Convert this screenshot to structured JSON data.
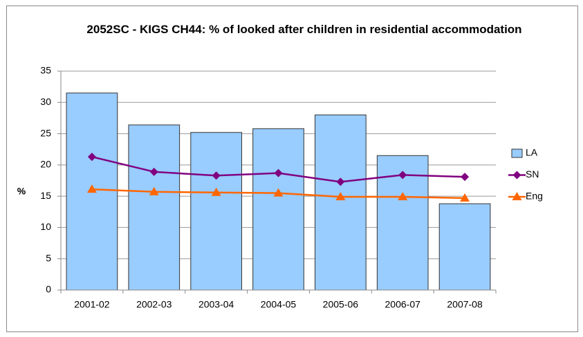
{
  "chart_data": {
    "type": "bar",
    "title": "2052SC - KIGS CH44: % of looked after children in residential accommodation",
    "y_label": "%",
    "categories": [
      "2001-02",
      "2002-03",
      "2003-04",
      "2004-05",
      "2005-06",
      "2006-07",
      "2007-08"
    ],
    "series": [
      {
        "name": "LA",
        "type": "bar",
        "color": "#99ccff",
        "values": [
          31.5,
          26.4,
          25.2,
          25.8,
          28.0,
          21.5,
          13.8
        ]
      },
      {
        "name": "SN",
        "type": "line",
        "color": "#800080",
        "marker": "diamond",
        "values": [
          21.3,
          18.9,
          18.3,
          18.7,
          17.3,
          18.4,
          18.1
        ]
      },
      {
        "name": "Eng",
        "type": "line",
        "color": "#ff6600",
        "marker": "triangle",
        "values": [
          16.1,
          15.7,
          15.6,
          15.5,
          14.9,
          14.9,
          14.7
        ]
      }
    ],
    "ylim": [
      0,
      35
    ],
    "yticks": [
      0,
      5,
      10,
      15,
      20,
      25,
      30,
      35
    ],
    "grid": true,
    "legend": "right"
  }
}
